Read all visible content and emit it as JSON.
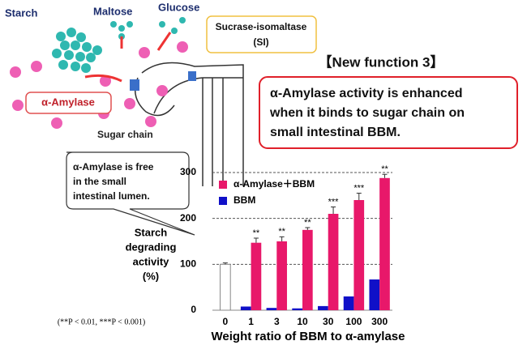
{
  "diagram": {
    "labels": {
      "starch": "Starch",
      "maltose": "Maltose",
      "glucose": "Glucose",
      "amylase": "α-Amylase",
      "sugar_chain": "Sugar chain"
    },
    "si_box": [
      "Sucrase-isomaltase",
      "(SI)"
    ],
    "heading": "【New function 3】",
    "main_callout": [
      "α-Amylase activity is enhanced",
      "when it binds to sugar chain on",
      "small intestinal BBM."
    ],
    "free_callout": [
      "α-Amylase is free",
      "in the small",
      "intestinal lumen."
    ]
  },
  "chart_data": {
    "type": "bar",
    "y_label": [
      "Starch",
      "degrading",
      "activity",
      "(%)"
    ],
    "x_label": "Weight ratio of BBM to α-amylase",
    "footnote": "(**P < 0.01, ***P < 0.001)",
    "categories": [
      "0",
      "1",
      "3",
      "10",
      "30",
      "100",
      "300"
    ],
    "series": [
      {
        "color": "#ffffff",
        "values": [
          100,
          null,
          null,
          null,
          null,
          null,
          null
        ],
        "errors": [
          3,
          null,
          null,
          null,
          null,
          null,
          null
        ]
      },
      {
        "name": "BBM",
        "color": "#1010c8",
        "values": [
          null,
          8,
          5,
          4,
          9,
          30,
          67
        ]
      },
      {
        "name": "α-Amylase＋BBM",
        "color": "#e8186a",
        "values": [
          null,
          147,
          150,
          175,
          210,
          240,
          288
        ],
        "errors": [
          null,
          10,
          10,
          5,
          15,
          15,
          8
        ],
        "significance": [
          null,
          "**",
          "**",
          "**",
          "***",
          "***",
          "**"
        ]
      }
    ],
    "ylim": [
      0,
      300
    ],
    "yticks": [
      0,
      100,
      200,
      300
    ],
    "grid": true
  }
}
